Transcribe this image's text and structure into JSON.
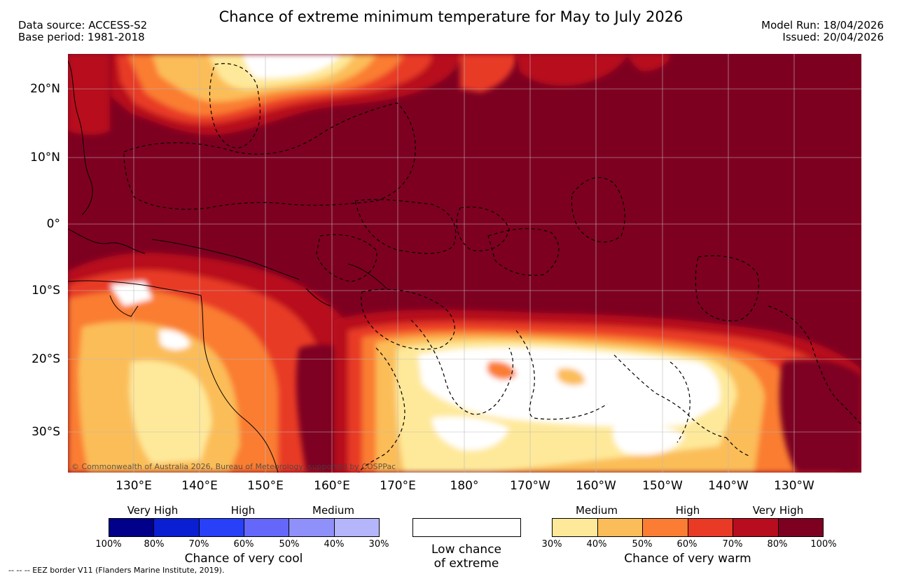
{
  "header": {
    "title": "Chance of extreme minimum temperature for May to July 2026",
    "data_source": "Data source: ACCESS-S2",
    "base_period": "Base period: 1981-2018",
    "model_run": "Model Run: 18/04/2026",
    "issued": "Issued: 20/04/2026"
  },
  "map": {
    "lat_ticks": [
      "20°N",
      "10°N",
      "0°",
      "10°S",
      "20°S",
      "30°S"
    ],
    "lon_ticks": [
      "130°E",
      "140°E",
      "150°E",
      "160°E",
      "170°E",
      "180°",
      "170°W",
      "160°W",
      "150°W",
      "140°W",
      "130°W"
    ],
    "copyright": "© Commonwealth of Australia 2026, Bureau of Meteorology, supported by COSPPac"
  },
  "legend": {
    "cool": {
      "labels": [
        "Very High",
        "High",
        "Medium"
      ],
      "percents": [
        "100%",
        "80%",
        "70%",
        "60%",
        "50%",
        "40%",
        "30%"
      ],
      "colors": [
        "#00008b",
        "#0a1fd2",
        "#2740f8",
        "#6467f9",
        "#8f90fa",
        "#b4b5fb"
      ],
      "title": "Chance of very cool"
    },
    "low": {
      "title_line1": "Low chance",
      "title_line2": "of extreme",
      "color": "#ffffff"
    },
    "warm": {
      "labels": [
        "Medium",
        "High",
        "Very High"
      ],
      "percents": [
        "30%",
        "40%",
        "50%",
        "60%",
        "70%",
        "80%",
        "100%"
      ],
      "colors": [
        "#fee99a",
        "#fbbd59",
        "#fa7d33",
        "#e83a25",
        "#b80d1f",
        "#7e0021"
      ],
      "title": "Chance of very warm"
    }
  },
  "footnote": "--  --  -- EEZ border V11 (Flanders Marine Institute, 2019)."
}
